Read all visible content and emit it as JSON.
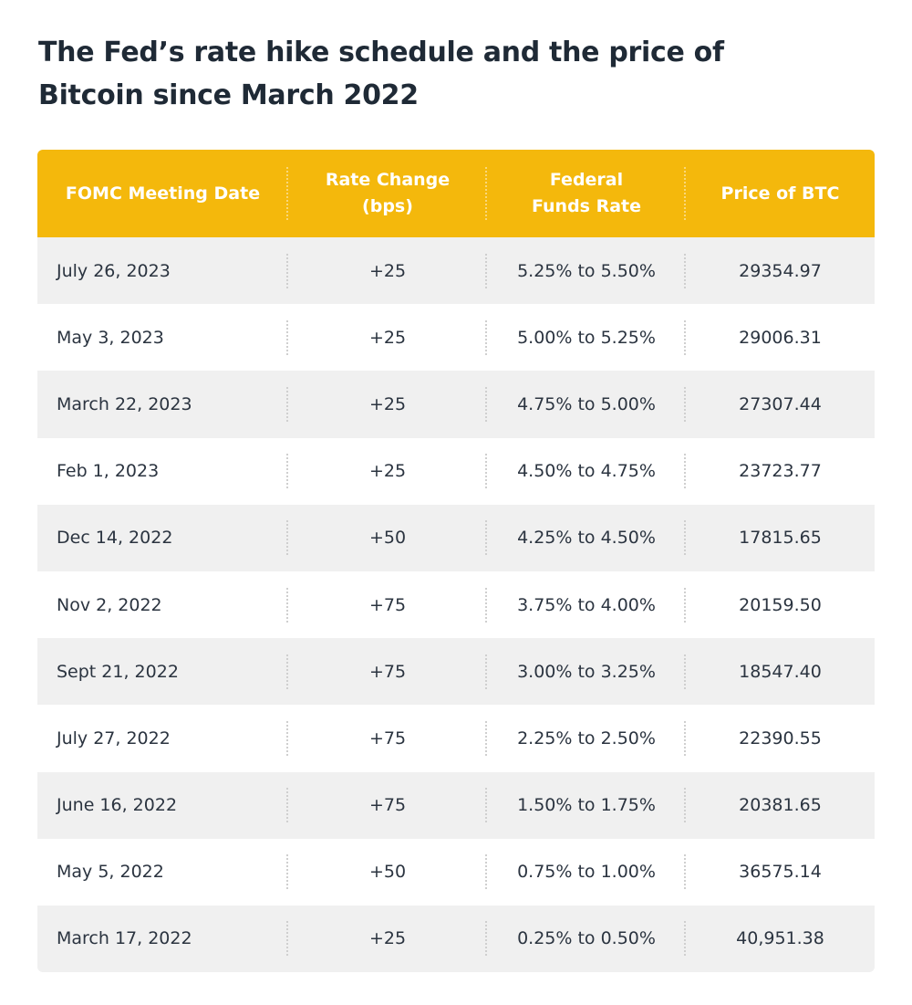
{
  "title": "The Fed’s rate hike schedule and the price of Bitcoin since March 2022",
  "colors": {
    "header_bg": "#f4b80c",
    "header_text": "#ffffff",
    "row_alt_bg": "#f0f0f0",
    "row_bg": "#ffffff",
    "text": "#2b3440"
  },
  "chart_data": {
    "type": "table",
    "title": "The Fed’s rate hike schedule and the price of Bitcoin since March 2022",
    "columns": [
      "FOMC Meeting Date",
      "Rate Change\n(bps)",
      "Federal\nFunds Rate",
      "Price of BTC"
    ],
    "rows": [
      [
        "July 26, 2023",
        "+25",
        "5.25% to 5.50%",
        "29354.97"
      ],
      [
        "May 3, 2023",
        "+25",
        "5.00% to 5.25%",
        "29006.31"
      ],
      [
        "March 22, 2023",
        "+25",
        "4.75% to 5.00%",
        "27307.44"
      ],
      [
        "Feb 1, 2023",
        "+25",
        "4.50% to 4.75%",
        "23723.77"
      ],
      [
        "Dec 14, 2022",
        "+50",
        "4.25% to 4.50%",
        "17815.65"
      ],
      [
        "Nov 2, 2022",
        "+75",
        "3.75% to 4.00%",
        "20159.50"
      ],
      [
        "Sept 21, 2022",
        "+75",
        "3.00% to 3.25%",
        "18547.40"
      ],
      [
        "July 27, 2022",
        "+75",
        "2.25% to 2.50%",
        "22390.55"
      ],
      [
        "June 16, 2022",
        "+75",
        "1.50% to 1.75%",
        "20381.65"
      ],
      [
        "May 5, 2022",
        "+50",
        "0.75% to 1.00%",
        "36575.14"
      ],
      [
        "March 17, 2022",
        "+25",
        "0.25% to 0.50%",
        "40,951.38"
      ]
    ]
  }
}
